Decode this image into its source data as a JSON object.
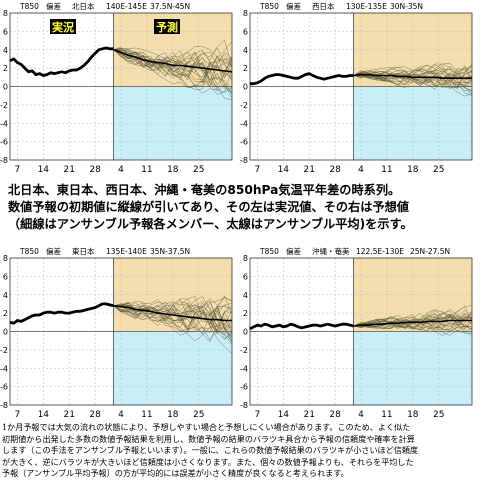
{
  "chart_data": [
    {
      "type": "line",
      "panel": "top-left",
      "title_parts": [
        "T850",
        "偏差",
        "北日本",
        "140E-145E",
        "37.5N-45N"
      ],
      "region_badges": {
        "observed": "実況",
        "forecast": "予測"
      },
      "x_tick_labels": [
        "7",
        "14",
        "21",
        "28",
        "4",
        "11",
        "18",
        "25"
      ],
      "ylim": [
        -8,
        8
      ],
      "y_ticks": [
        -8,
        -6,
        -4,
        -2,
        0,
        2,
        4,
        6,
        8
      ],
      "observed_x": [
        0,
        1,
        2,
        3,
        4,
        5,
        6,
        7,
        8,
        9,
        10,
        11,
        12,
        13,
        14,
        15,
        16,
        17,
        18,
        19,
        20,
        21,
        22,
        23,
        24,
        25,
        26,
        27,
        28
      ],
      "observed_y": [
        2.8,
        3.0,
        2.6,
        2.4,
        2.0,
        1.6,
        1.7,
        1.3,
        1.4,
        1.2,
        1.3,
        1.5,
        1.4,
        1.5,
        1.6,
        1.5,
        1.7,
        1.8,
        1.8,
        2.0,
        2.3,
        2.7,
        3.2,
        3.6,
        4.0,
        4.1,
        4.2,
        4.1,
        4.1
      ],
      "mean_x": [
        28,
        30,
        32,
        34,
        36,
        38,
        40,
        42,
        44,
        46,
        48,
        50,
        52,
        54,
        56,
        58,
        60
      ],
      "mean_y": [
        4.0,
        3.7,
        3.4,
        3.2,
        2.9,
        2.7,
        2.6,
        2.5,
        2.3,
        2.3,
        2.2,
        2.1,
        2.0,
        1.9,
        1.8,
        1.7,
        1.6
      ],
      "spread_start": 0.5,
      "spread_end": 2.6
    },
    {
      "type": "line",
      "panel": "top-right",
      "title_parts": [
        "T850",
        "偏差",
        "西日本",
        "130E-135E",
        "30N-35N"
      ],
      "x_tick_labels": [
        "7",
        "14",
        "21",
        "28",
        "4",
        "11",
        "18",
        "25"
      ],
      "ylim": [
        -8,
        8
      ],
      "y_ticks": [
        -8,
        -6,
        -4,
        -2,
        0,
        2,
        4,
        6,
        8
      ],
      "observed_x": [
        0,
        1,
        2,
        3,
        4,
        5,
        6,
        7,
        8,
        9,
        10,
        11,
        12,
        13,
        14,
        15,
        16,
        17,
        18,
        19,
        20,
        21,
        22,
        23,
        24,
        25,
        26,
        27,
        28
      ],
      "observed_y": [
        0.3,
        0.3,
        0.4,
        0.6,
        0.9,
        1.1,
        1.2,
        1.3,
        1.3,
        1.2,
        1.1,
        1.0,
        0.9,
        0.9,
        1.1,
        1.3,
        1.4,
        1.2,
        1.0,
        0.9,
        0.8,
        0.9,
        1.0,
        1.1,
        1.2,
        1.1,
        1.1,
        1.2,
        1.2
      ],
      "mean_x": [
        28,
        30,
        32,
        34,
        36,
        38,
        40,
        42,
        44,
        46,
        48,
        50,
        52,
        54,
        56,
        58,
        60
      ],
      "mean_y": [
        1.2,
        1.3,
        1.3,
        1.2,
        1.2,
        1.2,
        1.1,
        1.1,
        1.0,
        1.0,
        1.0,
        1.0,
        0.9,
        0.9,
        0.9,
        0.9,
        0.9
      ],
      "spread_start": 0.3,
      "spread_end": 1.7
    },
    {
      "type": "line",
      "panel": "bottom-left",
      "title_parts": [
        "T850",
        "偏差",
        "東日本",
        "135E-140E",
        "35N-37.5N"
      ],
      "x_tick_labels": [
        "7",
        "14",
        "21",
        "28",
        "4",
        "11",
        "18",
        "25"
      ],
      "ylim": [
        -8,
        8
      ],
      "y_ticks": [
        -8,
        -6,
        -4,
        -2,
        0,
        2,
        4,
        6,
        8
      ],
      "observed_x": [
        0,
        1,
        2,
        3,
        4,
        5,
        6,
        7,
        8,
        9,
        10,
        11,
        12,
        13,
        14,
        15,
        16,
        17,
        18,
        19,
        20,
        21,
        22,
        23,
        24,
        25,
        26,
        27,
        28
      ],
      "observed_y": [
        1.0,
        0.9,
        1.2,
        1.1,
        1.3,
        1.5,
        1.7,
        1.8,
        1.8,
        2.0,
        2.1,
        2.1,
        2.0,
        2.1,
        2.1,
        2.0,
        2.0,
        2.1,
        2.2,
        2.2,
        2.3,
        2.4,
        2.5,
        2.6,
        2.8,
        3.0,
        3.0,
        2.9,
        2.8
      ],
      "mean_x": [
        28,
        30,
        32,
        34,
        36,
        38,
        40,
        42,
        44,
        46,
        48,
        50,
        52,
        54,
        56,
        58,
        60
      ],
      "mean_y": [
        2.8,
        2.7,
        2.6,
        2.4,
        2.3,
        2.2,
        2.0,
        1.9,
        1.8,
        1.7,
        1.6,
        1.5,
        1.4,
        1.3,
        1.3,
        1.2,
        1.2
      ],
      "spread_start": 0.5,
      "spread_end": 2.5
    },
    {
      "type": "line",
      "panel": "bottom-right",
      "title_parts": [
        "T850",
        "偏差",
        "沖縄・奄美",
        "122.5E-130E",
        "25N-27.5N"
      ],
      "x_tick_labels": [
        "7",
        "14",
        "21",
        "28",
        "4",
        "11",
        "18",
        "25"
      ],
      "ylim": [
        -8,
        8
      ],
      "y_ticks": [
        -8,
        -6,
        -4,
        -2,
        0,
        2,
        4,
        6,
        8
      ],
      "observed_x": [
        0,
        1,
        2,
        3,
        4,
        5,
        6,
        7,
        8,
        9,
        10,
        11,
        12,
        13,
        14,
        15,
        16,
        17,
        18,
        19,
        20,
        21,
        22,
        23,
        24,
        25,
        26,
        27,
        28
      ],
      "observed_y": [
        0.3,
        0.5,
        0.7,
        0.6,
        0.8,
        0.7,
        0.5,
        0.6,
        0.7,
        0.5,
        0.6,
        0.8,
        0.7,
        0.5,
        0.4,
        0.5,
        0.6,
        0.7,
        0.7,
        0.6,
        0.7,
        0.8,
        0.7,
        0.6,
        0.7,
        0.8,
        0.8,
        0.7,
        0.6
      ],
      "mean_x": [
        28,
        30,
        32,
        34,
        36,
        38,
        40,
        42,
        44,
        46,
        48,
        50,
        52,
        54,
        56,
        58,
        60
      ],
      "mean_y": [
        0.6,
        0.7,
        0.7,
        0.8,
        0.8,
        0.9,
        0.9,
        1.0,
        1.0,
        1.0,
        1.1,
        1.1,
        1.1,
        1.2,
        1.2,
        1.2,
        1.2
      ],
      "spread_start": 0.3,
      "spread_end": 1.4
    }
  ],
  "caption": {
    "line1": "北日本、東日本、西日本、沖縄・奄美の850hPa気温平年差の時系列。",
    "line2": "数値予報の初期値に縦線が引いてあり、その左は実況値、その右は予想値",
    "line3": "（細線はアンサンブル予報各メンバー、太線はアンサンブル平均)を示す。"
  },
  "footnote": [
    "1か月予報では大気の流れの状態により、予想しやすい場合と予想しにくい場合があります。このため、よく似た",
    "初期値から出発した多数の数値予報結果を利用し、数値予報の結果のバラツキ具合から予報の信頼度や確率を計算",
    "します（この手法をアンサンブル予報といいます）。一般に、これらの数値予報結果のバラツキが小さいほど信頼度",
    "が大きく、逆にバラツキが大きいほど信頼度は小さくなります。また、個々の数値予報よりも、それらを平均した",
    "予報（アンサンブル平均予報）の方が平均的には誤差が小さく精度が良くなると考えられます。"
  ],
  "colors": {
    "forecast_warm_bg": "#f5deae",
    "forecast_cold_bg": "#c8eef8",
    "member_line": "#5a5a3a",
    "mean_line": "#000000",
    "grid": "#bdbdbd"
  }
}
